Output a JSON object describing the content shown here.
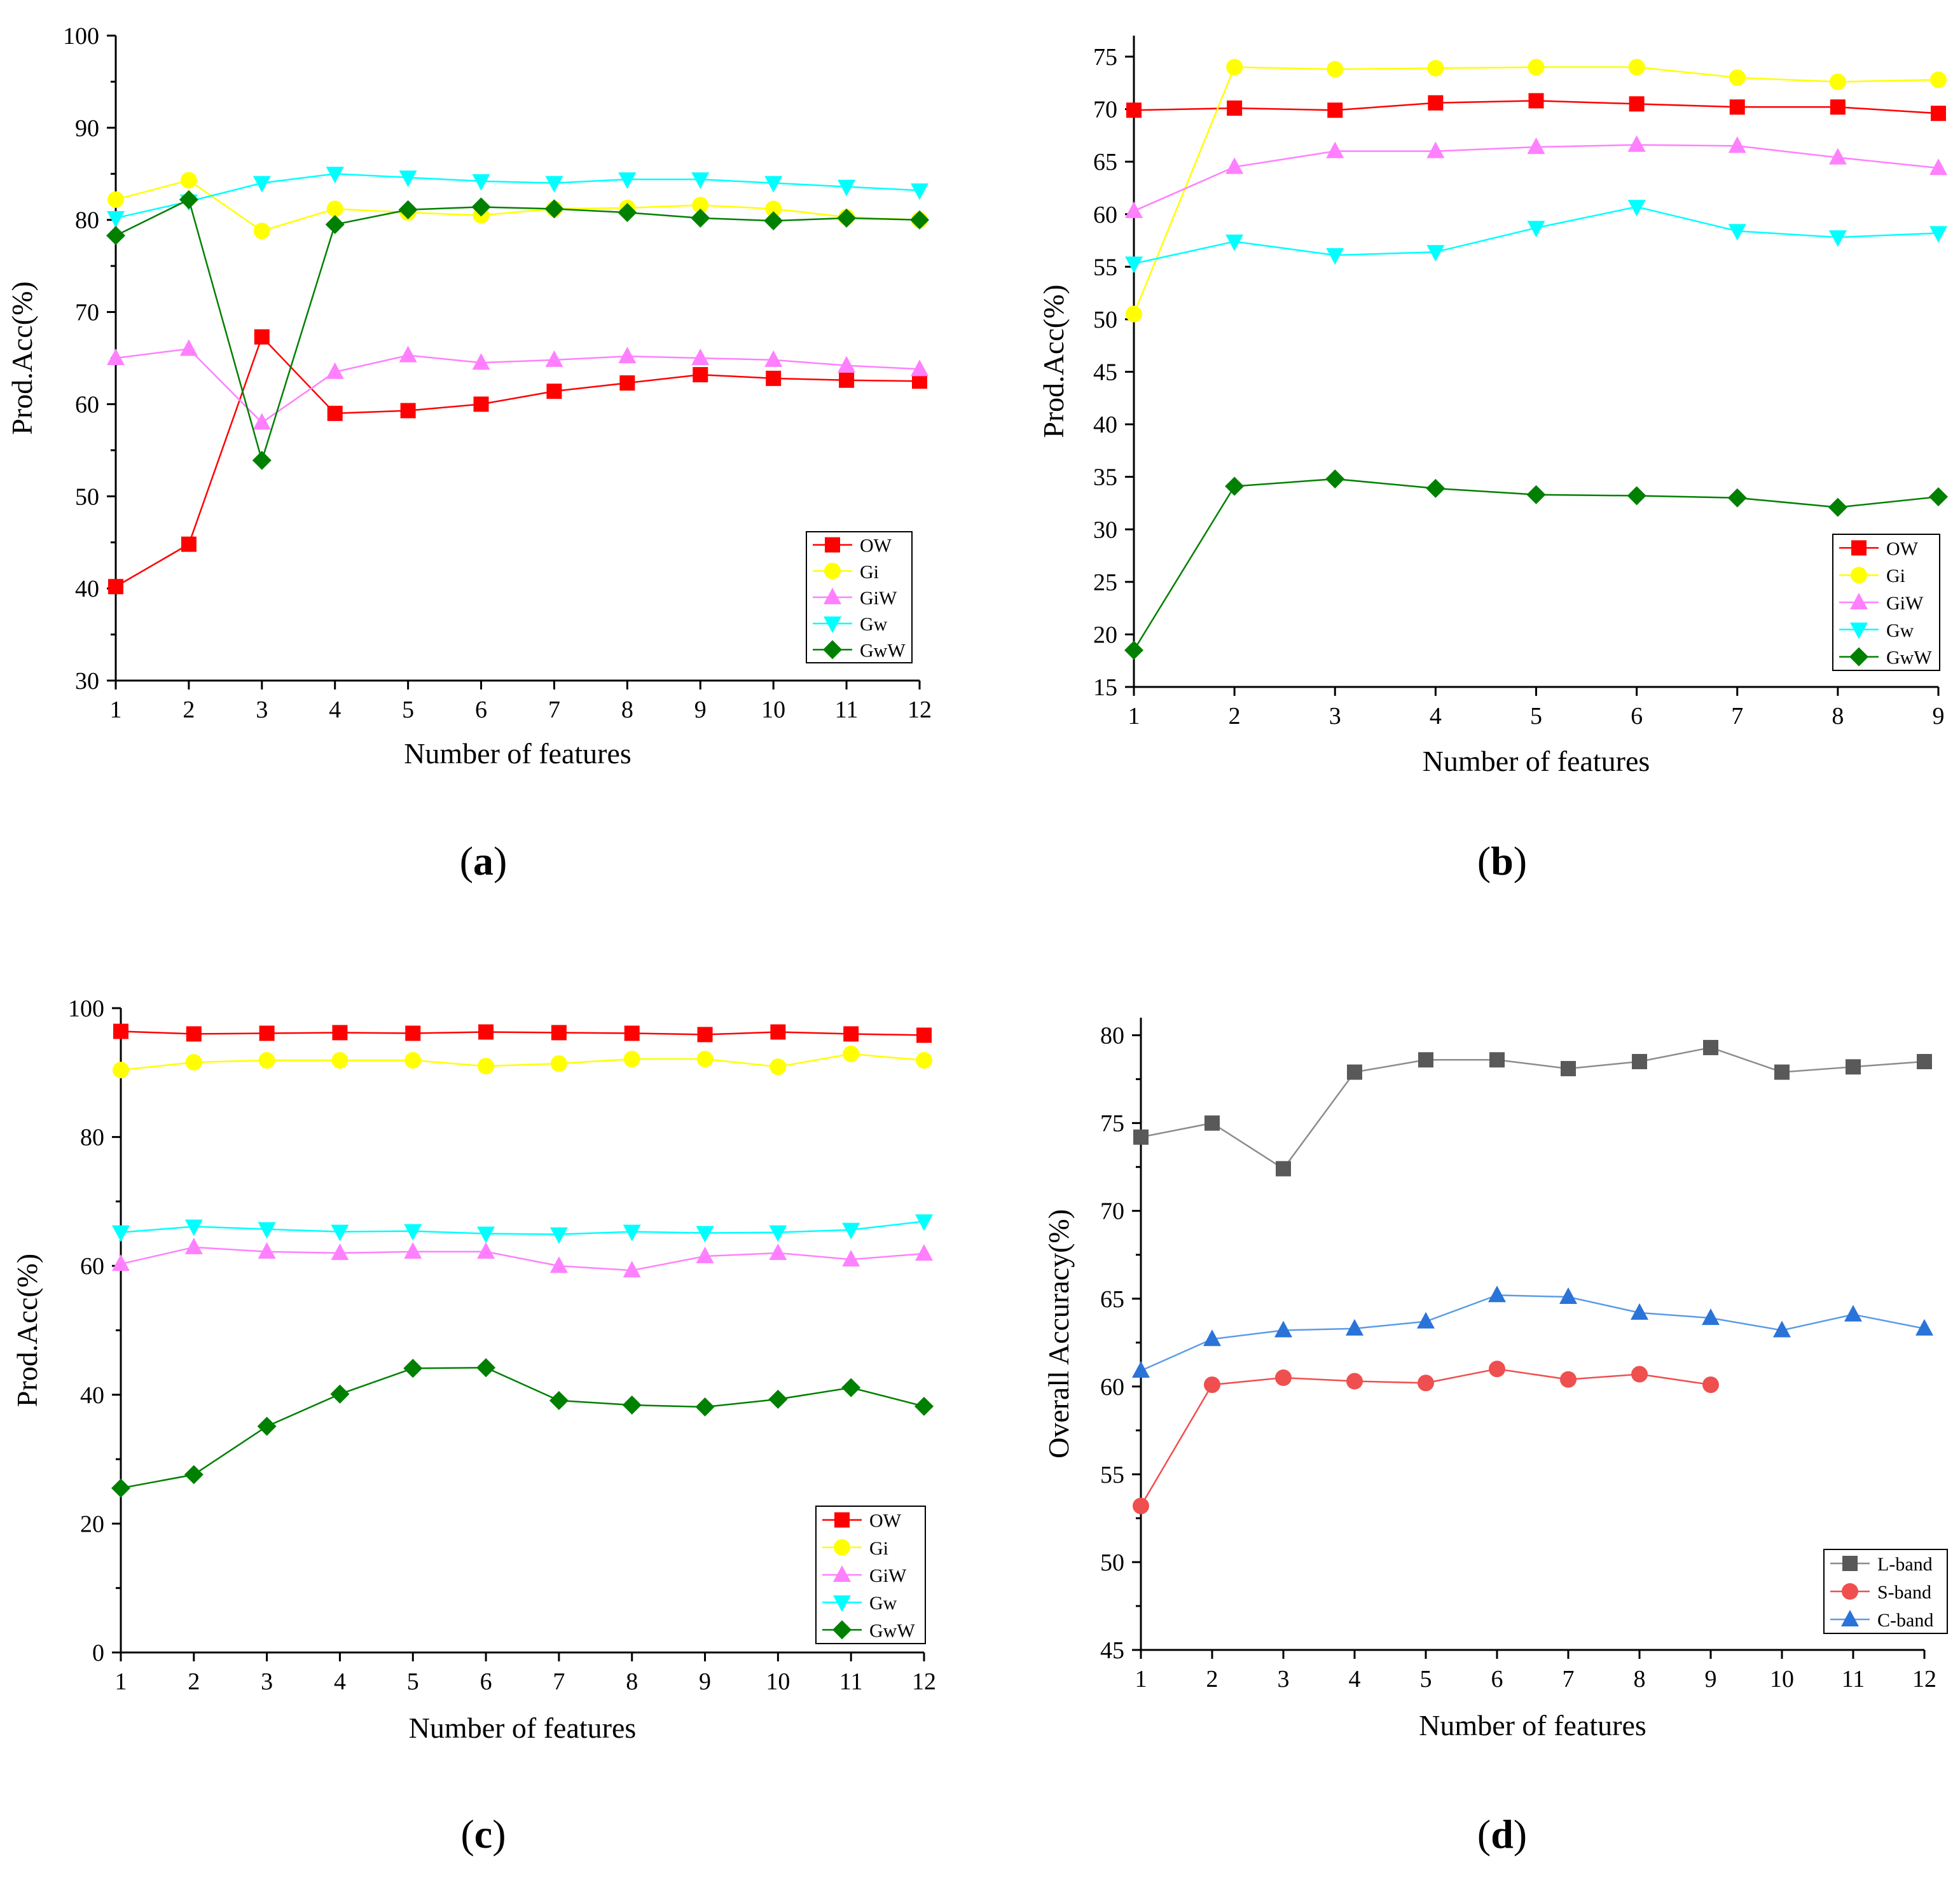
{
  "panels": [
    {
      "id": "a",
      "caption_letter": "a",
      "chart_data": {
        "type": "line",
        "xlabel": "Number of features",
        "ylabel": "Prod.Acc(%)",
        "xlim": [
          1,
          12
        ],
        "ylim": [
          30,
          100
        ],
        "xticks": [
          1,
          2,
          3,
          4,
          5,
          6,
          7,
          8,
          9,
          10,
          11,
          12
        ],
        "yticks": [
          30,
          40,
          50,
          60,
          70,
          80,
          90,
          100
        ],
        "legend_position": "bottom-right",
        "series": [
          {
            "name": "OW",
            "color": "#ff0000",
            "marker": "square",
            "x": [
              1,
              2,
              3,
              4,
              5,
              6,
              7,
              8,
              9,
              10,
              11,
              12
            ],
            "values": [
              40.2,
              44.8,
              67.3,
              59.0,
              59.3,
              60.0,
              61.4,
              62.3,
              63.2,
              62.8,
              62.6,
              62.5
            ]
          },
          {
            "name": "Gi",
            "color": "#ffff00",
            "marker": "circle",
            "x": [
              1,
              2,
              3,
              4,
              5,
              6,
              7,
              8,
              9,
              10,
              11,
              12
            ],
            "values": [
              82.2,
              84.3,
              78.8,
              81.2,
              80.8,
              80.5,
              81.2,
              81.3,
              81.6,
              81.2,
              80.3,
              80.0
            ]
          },
          {
            "name": "GiW",
            "color": "#ff80ff",
            "marker": "triangle-up",
            "x": [
              1,
              2,
              3,
              4,
              5,
              6,
              7,
              8,
              9,
              10,
              11,
              12
            ],
            "values": [
              65.0,
              66.0,
              58.0,
              63.5,
              65.3,
              64.5,
              64.8,
              65.2,
              65.0,
              64.8,
              64.2,
              63.8
            ]
          },
          {
            "name": "Gw",
            "color": "#00ffff",
            "marker": "triangle-down",
            "x": [
              1,
              2,
              3,
              4,
              5,
              6,
              7,
              8,
              9,
              10,
              11,
              12
            ],
            "values": [
              80.2,
              82.0,
              84.0,
              85.0,
              84.6,
              84.2,
              84.0,
              84.4,
              84.4,
              84.0,
              83.6,
              83.2
            ]
          },
          {
            "name": "GwW",
            "color": "#008000",
            "marker": "diamond",
            "x": [
              1,
              2,
              3,
              4,
              5,
              6,
              7,
              8,
              9,
              10,
              11,
              12
            ],
            "values": [
              78.3,
              82.2,
              53.9,
              79.5,
              81.1,
              81.4,
              81.2,
              80.8,
              80.2,
              79.9,
              80.2,
              80.0
            ]
          }
        ]
      }
    },
    {
      "id": "b",
      "caption_letter": "b",
      "chart_data": {
        "type": "line",
        "xlabel": "Number of features",
        "ylabel": "Prod.Acc(%)",
        "xlim": [
          1,
          9
        ],
        "ylim": [
          15,
          77
        ],
        "xticks": [
          1,
          2,
          3,
          4,
          5,
          6,
          7,
          8,
          9
        ],
        "yticks": [
          15,
          20,
          25,
          30,
          35,
          40,
          45,
          50,
          55,
          60,
          65,
          70,
          75
        ],
        "legend_position": "bottom-right",
        "series": [
          {
            "name": "OW",
            "color": "#ff0000",
            "marker": "square",
            "x": [
              1,
              2,
              3,
              4,
              5,
              6,
              7,
              8,
              9
            ],
            "values": [
              69.9,
              70.1,
              69.9,
              70.6,
              70.8,
              70.5,
              70.2,
              70.2,
              69.6
            ]
          },
          {
            "name": "Gi",
            "color": "#ffff00",
            "marker": "circle",
            "x": [
              1,
              2,
              3,
              4,
              5,
              6,
              7,
              8,
              9
            ],
            "values": [
              50.5,
              74.0,
              73.8,
              73.9,
              74.0,
              74.0,
              73.0,
              72.6,
              72.8
            ]
          },
          {
            "name": "GiW",
            "color": "#ff80ff",
            "marker": "triangle-up",
            "x": [
              1,
              2,
              3,
              4,
              5,
              6,
              7,
              8,
              9
            ],
            "values": [
              60.3,
              64.5,
              66.0,
              66.0,
              66.4,
              66.6,
              66.5,
              65.4,
              64.4
            ]
          },
          {
            "name": "Gw",
            "color": "#00ffff",
            "marker": "triangle-down",
            "x": [
              1,
              2,
              3,
              4,
              5,
              6,
              7,
              8,
              9
            ],
            "values": [
              55.3,
              57.4,
              56.1,
              56.4,
              58.7,
              60.7,
              58.4,
              57.8,
              58.2
            ]
          },
          {
            "name": "GwW",
            "color": "#008000",
            "marker": "diamond",
            "x": [
              1,
              2,
              3,
              4,
              5,
              6,
              7,
              8,
              9
            ],
            "values": [
              18.5,
              34.1,
              34.8,
              33.9,
              33.3,
              33.2,
              33.0,
              32.1,
              33.1
            ]
          }
        ]
      }
    },
    {
      "id": "c",
      "caption_letter": "c",
      "chart_data": {
        "type": "line",
        "xlabel": "Number of features",
        "ylabel": "Prod.Acc(%)",
        "xlim": [
          1,
          12
        ],
        "ylim": [
          0,
          100
        ],
        "xticks": [
          1,
          2,
          3,
          4,
          5,
          6,
          7,
          8,
          9,
          10,
          11,
          12
        ],
        "yticks": [
          0,
          20,
          40,
          60,
          80,
          100
        ],
        "legend_position": "bottom-right",
        "series": [
          {
            "name": "OW",
            "color": "#ff0000",
            "marker": "square",
            "x": [
              1,
              2,
              3,
              4,
              5,
              6,
              7,
              8,
              9,
              10,
              11,
              12
            ],
            "values": [
              96.4,
              96.0,
              96.1,
              96.2,
              96.1,
              96.3,
              96.2,
              96.1,
              95.9,
              96.3,
              96.0,
              95.8
            ]
          },
          {
            "name": "Gi",
            "color": "#ffff00",
            "marker": "circle",
            "x": [
              1,
              2,
              3,
              4,
              5,
              6,
              7,
              8,
              9,
              10,
              11,
              12
            ],
            "values": [
              90.4,
              91.6,
              91.9,
              91.9,
              91.9,
              91.0,
              91.4,
              92.1,
              92.1,
              90.9,
              92.9,
              91.9
            ]
          },
          {
            "name": "GiW",
            "color": "#ff80ff",
            "marker": "triangle-up",
            "x": [
              1,
              2,
              3,
              4,
              5,
              6,
              7,
              8,
              9,
              10,
              11,
              12
            ],
            "values": [
              60.3,
              62.9,
              62.2,
              62.0,
              62.2,
              62.2,
              60.0,
              59.3,
              61.5,
              62.0,
              61.0,
              61.9
            ]
          },
          {
            "name": "Gw",
            "color": "#00ffff",
            "marker": "triangle-down",
            "x": [
              1,
              2,
              3,
              4,
              5,
              6,
              7,
              8,
              9,
              10,
              11,
              12
            ],
            "values": [
              65.2,
              66.1,
              65.7,
              65.3,
              65.4,
              65.0,
              64.9,
              65.3,
              65.1,
              65.2,
              65.6,
              66.9
            ]
          },
          {
            "name": "GwW",
            "color": "#008000",
            "marker": "diamond",
            "x": [
              1,
              2,
              3,
              4,
              5,
              6,
              7,
              8,
              9,
              10,
              11,
              12
            ],
            "values": [
              25.5,
              27.6,
              35.1,
              40.1,
              44.1,
              44.2,
              39.1,
              38.4,
              38.1,
              39.3,
              41.1,
              38.2
            ]
          }
        ]
      }
    },
    {
      "id": "d",
      "caption_letter": "d",
      "chart_data": {
        "type": "line",
        "xlabel": "Number of features",
        "ylabel": "Overall Accuracy(%)",
        "xlim": [
          1,
          12
        ],
        "ylim": [
          45,
          81
        ],
        "xticks": [
          1,
          2,
          3,
          4,
          5,
          6,
          7,
          8,
          9,
          10,
          11,
          12
        ],
        "yticks": [
          45,
          50,
          55,
          60,
          65,
          70,
          75,
          80
        ],
        "legend_position": "bottom-right",
        "series": [
          {
            "name": "L-band",
            "color": "#595959",
            "line_color": "#8c8c8c",
            "marker": "square",
            "x": [
              1,
              2,
              3,
              4,
              5,
              6,
              7,
              8,
              9,
              10,
              11,
              12
            ],
            "values": [
              74.2,
              75.0,
              72.4,
              77.9,
              78.6,
              78.6,
              78.1,
              78.5,
              79.3,
              77.9,
              78.2,
              78.5
            ]
          },
          {
            "name": "S-band",
            "color": "#ef4f4f",
            "line_color": "#ef4f4f",
            "marker": "circle",
            "x": [
              1,
              2,
              3,
              4,
              5,
              6,
              7,
              8,
              9
            ],
            "values": [
              53.2,
              60.1,
              60.5,
              60.3,
              60.2,
              61.0,
              60.4,
              60.7,
              60.1
            ]
          },
          {
            "name": "C-band",
            "color": "#2a73d8",
            "line_color": "#5b9be8",
            "marker": "triangle-up",
            "x": [
              1,
              2,
              3,
              4,
              5,
              6,
              7,
              8,
              9,
              10,
              11,
              12
            ],
            "values": [
              60.9,
              62.7,
              63.2,
              63.3,
              63.7,
              65.2,
              65.1,
              64.2,
              63.9,
              63.2,
              64.1,
              63.3
            ]
          }
        ]
      }
    }
  ]
}
